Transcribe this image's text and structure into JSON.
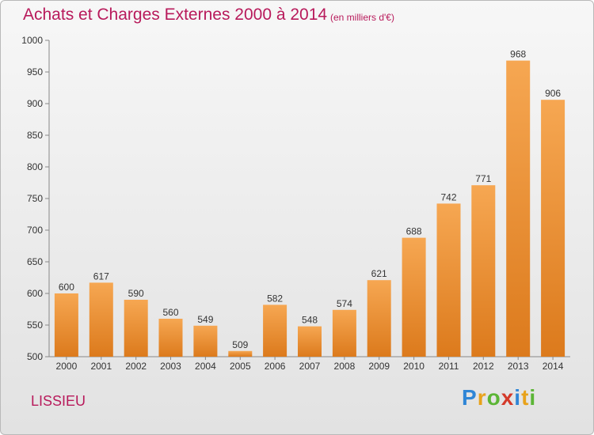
{
  "header": {
    "title": "Achats et Charges Externes 2000 à 2014",
    "unit": "(en milliers d'€)"
  },
  "footer": {
    "commune": "LISSIEU",
    "logo_letters": [
      "P",
      "r",
      "o",
      "x",
      "i",
      "t",
      "i"
    ]
  },
  "colors": {
    "bar_top": "#f6a752",
    "bar_bottom": "#dc7a1c",
    "title": "#b81a5b"
  },
  "chart_data": {
    "type": "bar",
    "title": "Achats et Charges Externes 2000 à 2014",
    "subtitle": "(en milliers d'€)",
    "categories": [
      "2000",
      "2001",
      "2002",
      "2003",
      "2004",
      "2005",
      "2006",
      "2007",
      "2008",
      "2009",
      "2010",
      "2011",
      "2012",
      "2013",
      "2014"
    ],
    "values": [
      600,
      617,
      590,
      560,
      549,
      509,
      582,
      548,
      574,
      621,
      688,
      742,
      771,
      968,
      906
    ],
    "ylim": [
      500,
      1000
    ],
    "yticks": [
      500,
      550,
      600,
      650,
      700,
      750,
      800,
      850,
      900,
      950,
      1000
    ],
    "grid": false,
    "data_labels": true
  }
}
